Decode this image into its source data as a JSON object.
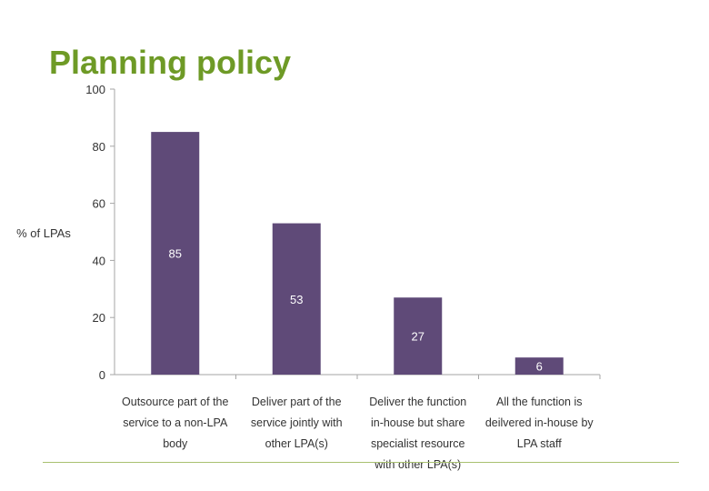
{
  "slide": {
    "title": "Planning policy"
  },
  "colors": {
    "title": "#6e9a26",
    "bar": "#5f4a78",
    "axis": "#a6a6a6",
    "bar_label": "#ffffff",
    "text": "#333333",
    "rule": "#a8c170"
  },
  "chart_data": {
    "type": "bar",
    "title": "",
    "ylabel": "% of LPAs",
    "xlabel": "",
    "ylim": [
      0,
      100
    ],
    "yticks": [
      0,
      20,
      40,
      60,
      80,
      100
    ],
    "grid": false,
    "legend": "none",
    "categories": [
      [
        "Outsource part of the",
        "service to a non-LPA",
        "body"
      ],
      [
        "Deliver part of the",
        "service jointly with",
        "other LPA(s)"
      ],
      [
        "Deliver the function",
        "in-house but share",
        "specialist resource",
        "with other LPA(s)"
      ],
      [
        "All the function is",
        "deilvered in-house by",
        "LPA staff"
      ]
    ],
    "values": [
      85,
      53,
      27,
      6
    ],
    "data_labels": [
      "85",
      "53",
      "27",
      "6"
    ]
  }
}
